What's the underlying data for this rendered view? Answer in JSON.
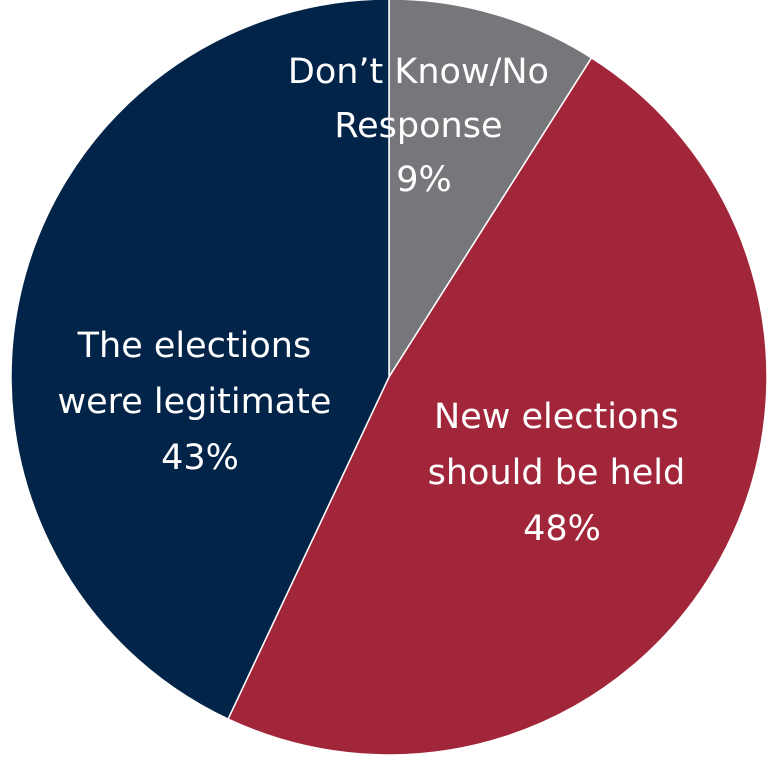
{
  "chart_data": {
    "type": "pie",
    "slices": [
      {
        "label_lines": [
          "Don’t Know/No",
          "Response"
        ],
        "value": 9,
        "value_label": "9%",
        "color": "#76777a"
      },
      {
        "label_lines": [
          "New elections",
          "should be held"
        ],
        "value": 48,
        "value_label": "48%",
        "color": "#a2263a"
      },
      {
        "label_lines": [
          "The elections",
          "were legitimate"
        ],
        "value": 43,
        "value_label": "43%",
        "color": "#022448"
      }
    ],
    "start_angle_deg": 0,
    "direction": "clockwise",
    "legend": "none",
    "label_color": "#ffffff"
  }
}
